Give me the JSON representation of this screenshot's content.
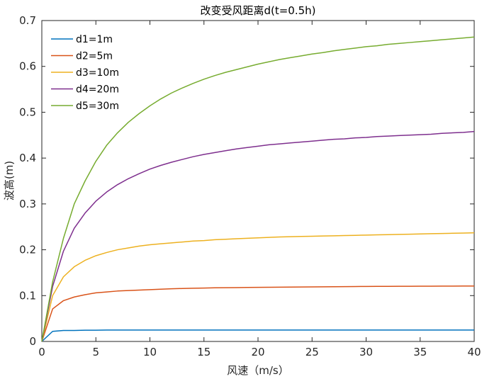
{
  "chart_data": {
    "type": "line",
    "title": "改变受风距离d(t=0.5h)",
    "xlabel": "风速（m/s）",
    "ylabel": "波高(m)",
    "xlim": [
      0,
      40
    ],
    "ylim": [
      0,
      0.7
    ],
    "xticks": [
      "0",
      "5",
      "10",
      "15",
      "20",
      "25",
      "30",
      "35",
      "40"
    ],
    "yticks": [
      "0",
      "0.1",
      "0.2",
      "0.3",
      "0.4",
      "0.5",
      "0.6",
      "0.7"
    ],
    "grid": false,
    "legend_position": "top-left",
    "x": [
      0,
      1,
      2,
      3,
      4,
      5,
      6,
      7,
      8,
      9,
      10,
      11,
      12,
      13,
      14,
      15,
      16,
      17,
      18,
      19,
      20,
      21,
      22,
      23,
      24,
      25,
      26,
      27,
      28,
      29,
      30,
      31,
      32,
      33,
      34,
      35,
      36,
      37,
      38,
      39,
      40
    ],
    "series": [
      {
        "name": "d1=1m",
        "color": "#0072BD",
        "values": [
          0,
          0.022,
          0.024,
          0.024,
          0.0245,
          0.0245,
          0.025,
          0.025,
          0.025,
          0.025,
          0.025,
          0.025,
          0.025,
          0.025,
          0.025,
          0.025,
          0.025,
          0.025,
          0.025,
          0.025,
          0.025,
          0.025,
          0.025,
          0.025,
          0.025,
          0.025,
          0.025,
          0.025,
          0.025,
          0.025,
          0.025,
          0.025,
          0.025,
          0.025,
          0.025,
          0.025,
          0.025,
          0.025,
          0.025,
          0.025,
          0.025
        ]
      },
      {
        "name": "d2=5m",
        "color": "#D95319",
        "values": [
          0,
          0.071,
          0.089,
          0.097,
          0.102,
          0.106,
          0.108,
          0.11,
          0.111,
          0.112,
          0.113,
          0.114,
          0.115,
          0.1155,
          0.116,
          0.1165,
          0.117,
          0.1172,
          0.1175,
          0.1178,
          0.118,
          0.1182,
          0.1184,
          0.1186,
          0.1188,
          0.119,
          0.1192,
          0.1194,
          0.1196,
          0.1198,
          0.12,
          0.1201,
          0.1202,
          0.1203,
          0.1204,
          0.1205,
          0.1206,
          0.1207,
          0.1208,
          0.1209,
          0.121
        ]
      },
      {
        "name": "d3=10m",
        "color": "#EDB120",
        "values": [
          0,
          0.1,
          0.141,
          0.163,
          0.177,
          0.187,
          0.194,
          0.2,
          0.204,
          0.208,
          0.211,
          0.213,
          0.215,
          0.217,
          0.219,
          0.22,
          0.222,
          0.223,
          0.224,
          0.225,
          0.226,
          0.227,
          0.228,
          0.2285,
          0.229,
          0.2295,
          0.23,
          0.2305,
          0.231,
          0.2315,
          0.232,
          0.2325,
          0.233,
          0.2335,
          0.234,
          0.2345,
          0.235,
          0.2355,
          0.236,
          0.2365,
          0.237
        ]
      },
      {
        "name": "d4=20m",
        "color": "#7E2F8E",
        "values": [
          0,
          0.12,
          0.197,
          0.247,
          0.28,
          0.306,
          0.326,
          0.342,
          0.355,
          0.366,
          0.376,
          0.384,
          0.391,
          0.397,
          0.403,
          0.408,
          0.412,
          0.416,
          0.42,
          0.423,
          0.426,
          0.429,
          0.431,
          0.433,
          0.435,
          0.437,
          0.439,
          0.441,
          0.442,
          0.444,
          0.445,
          0.447,
          0.448,
          0.449,
          0.45,
          0.451,
          0.452,
          0.454,
          0.455,
          0.456,
          0.458
        ]
      },
      {
        "name": "d5=30m",
        "color": "#77AC30",
        "values": [
          0,
          0.13,
          0.225,
          0.3,
          0.35,
          0.393,
          0.428,
          0.455,
          0.478,
          0.497,
          0.514,
          0.529,
          0.542,
          0.553,
          0.563,
          0.572,
          0.58,
          0.587,
          0.593,
          0.599,
          0.605,
          0.61,
          0.615,
          0.619,
          0.623,
          0.627,
          0.63,
          0.634,
          0.637,
          0.64,
          0.643,
          0.645,
          0.648,
          0.65,
          0.652,
          0.654,
          0.656,
          0.658,
          0.66,
          0.662,
          0.664
        ]
      }
    ]
  }
}
